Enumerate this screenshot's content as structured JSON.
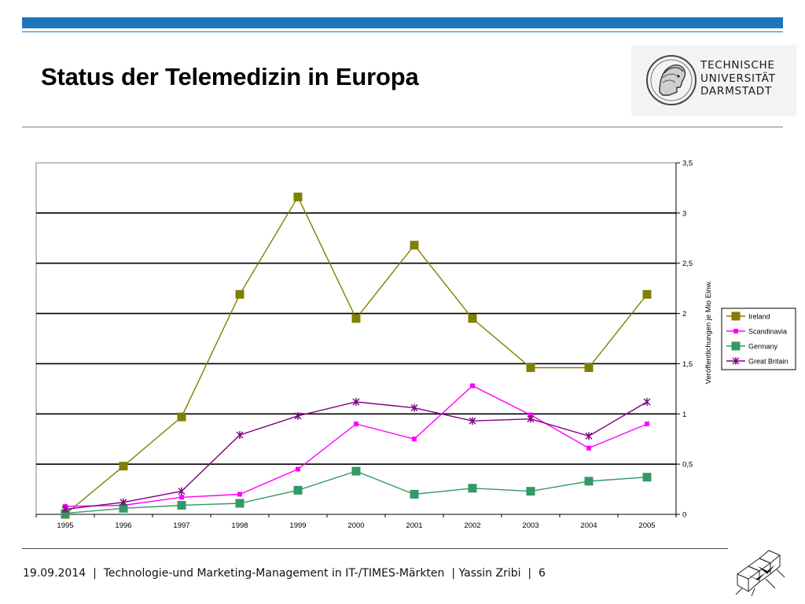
{
  "header": {
    "title": "Status der Telemedizin in Europa",
    "accent_color": "#1f76c0"
  },
  "logo": {
    "name": "tu-darmstadt-logo",
    "lines": [
      "TECHNISCHE",
      "UNIVERSITÄT",
      "DARMSTADT"
    ]
  },
  "chart_data": {
    "type": "line",
    "title": "",
    "xlabel": "",
    "ylabel": "Veröffentlichungen je Mio Einw.",
    "x": [
      "1995",
      "1996",
      "1997",
      "1998",
      "1999",
      "2000",
      "2001",
      "2002",
      "2003",
      "2004",
      "2005"
    ],
    "ylim": [
      0,
      3.5
    ],
    "yticks": [
      {
        "value": 0,
        "label": "0"
      },
      {
        "value": 0.5,
        "label": "0,5"
      },
      {
        "value": 1,
        "label": "1"
      },
      {
        "value": 1.5,
        "label": "1,5"
      },
      {
        "value": 2,
        "label": "2"
      },
      {
        "value": 2.5,
        "label": "2,5"
      },
      {
        "value": 3,
        "label": "3"
      },
      {
        "value": 3.5,
        "label": "3,5"
      }
    ],
    "y_axis_side": "right",
    "grid": true,
    "legend_position": "right",
    "series": [
      {
        "name": "Ireland",
        "color": "#808000",
        "marker": "square",
        "values": [
          0.0,
          0.48,
          0.97,
          2.19,
          3.16,
          1.95,
          2.68,
          1.95,
          1.46,
          1.46,
          2.19
        ]
      },
      {
        "name": "Scandinavia",
        "color": "#ff00ff",
        "marker": "small-square",
        "values": [
          0.08,
          0.09,
          0.17,
          0.2,
          0.45,
          0.9,
          0.75,
          1.28,
          0.99,
          0.66,
          0.9
        ]
      },
      {
        "name": "Germany",
        "color": "#339966",
        "marker": "square",
        "values": [
          0.01,
          0.06,
          0.09,
          0.11,
          0.24,
          0.43,
          0.2,
          0.26,
          0.23,
          0.33,
          0.37
        ]
      },
      {
        "name": "Great Britain",
        "color": "#800080",
        "marker": "star",
        "values": [
          0.05,
          0.12,
          0.23,
          0.79,
          0.98,
          1.12,
          1.06,
          0.93,
          0.95,
          0.78,
          1.12
        ]
      }
    ]
  },
  "footer": {
    "date": "19.09.2014",
    "course": "Technologie-und Marketing-Management in IT-/TIMES-Märkten",
    "author": "Yassin Zribi",
    "page": "6",
    "separator": "|"
  }
}
